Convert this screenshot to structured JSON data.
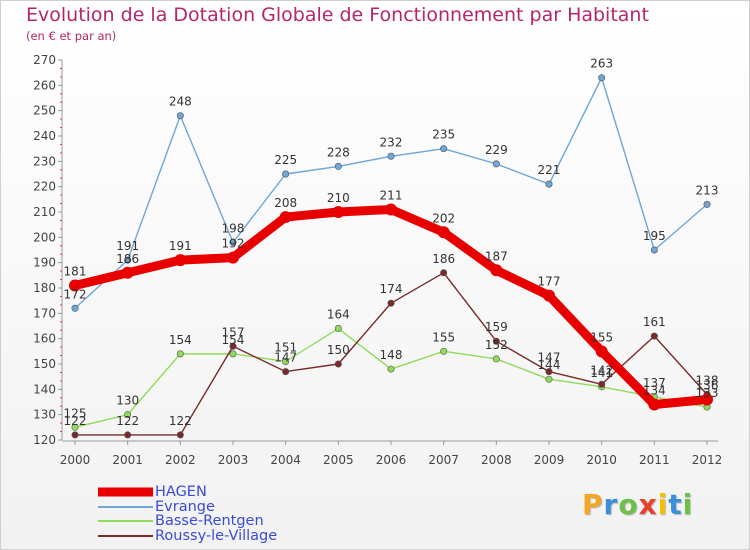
{
  "chart_data": {
    "type": "line",
    "title": "Evolution de la Dotation Globale de Fonctionnement par Habitant",
    "subtitle": "(en € et par an)",
    "xlabel": "",
    "ylabel": "",
    "x": [
      "2000",
      "2001",
      "2002",
      "2003",
      "2004",
      "2005",
      "2006",
      "2007",
      "2008",
      "2009",
      "2010",
      "2011",
      "2012"
    ],
    "ylim": [
      120,
      270
    ],
    "yticks": [
      120,
      130,
      140,
      150,
      160,
      170,
      180,
      190,
      200,
      210,
      220,
      230,
      240,
      250,
      260,
      270
    ],
    "grid": false,
    "legend": "bottom-left",
    "series": [
      {
        "name": "HAGEN",
        "color": "#e80000",
        "values": [
          181,
          186,
          191,
          192,
          208,
          210,
          211,
          202,
          187,
          177,
          155,
          134,
          136
        ]
      },
      {
        "name": "Evrange",
        "color": "#6fa6d6",
        "values": [
          172,
          191,
          248,
          198,
          225,
          228,
          232,
          235,
          229,
          221,
          263,
          195,
          213
        ]
      },
      {
        "name": "Basse-Rentgen",
        "color": "#8fdc5a",
        "values": [
          125,
          130,
          154,
          154,
          151,
          164,
          148,
          155,
          152,
          144,
          141,
          137,
          133
        ]
      },
      {
        "name": "Roussy-le-Village",
        "color": "#7a2a2a",
        "values": [
          122,
          122,
          122,
          157,
          147,
          150,
          174,
          186,
          159,
          147,
          142,
          161,
          138
        ]
      }
    ]
  },
  "labels": {
    "HAGEN": [
      "181",
      "186",
      "191",
      "192",
      "208",
      "210",
      "211",
      "202",
      "187",
      "177",
      "155",
      "134",
      "136"
    ],
    "Evrange": [
      "172",
      "191",
      "248",
      "198",
      "225",
      "228",
      "232",
      "235",
      "229",
      "221",
      "263",
      "195",
      "213"
    ],
    "Basse-Rentgen": [
      "125",
      "130",
      "154",
      "154",
      "151",
      "164",
      "148",
      "155",
      "152",
      "144",
      "141",
      "137",
      "133"
    ],
    "Roussy-le-Village": [
      "122",
      "122",
      "122",
      "157",
      "147",
      "150",
      "174",
      "186",
      "159",
      "147",
      "142",
      "161",
      "138"
    ]
  },
  "logo": {
    "letters": [
      "P",
      "r",
      "o",
      "x",
      "i",
      "t",
      "i"
    ],
    "colors": [
      "#f5a623",
      "#3a8fd8",
      "#6cc04a",
      "#e8402a",
      "#f5c000",
      "#3a8fd8",
      "#6cc04a"
    ]
  }
}
